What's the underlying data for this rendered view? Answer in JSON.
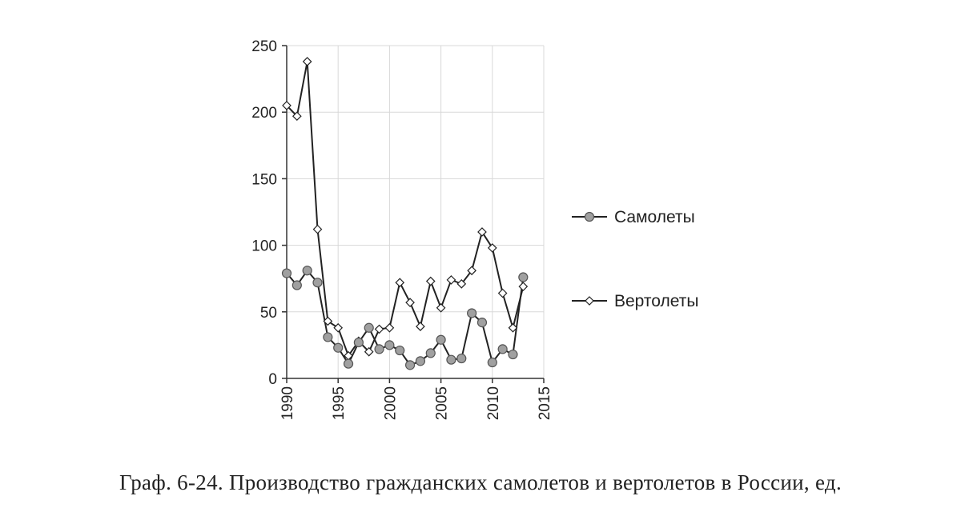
{
  "caption": "Граф. 6-24. Производство гражданских самолетов и вертолетов в России, ед.",
  "chart_data": {
    "type": "line",
    "title": "",
    "xlabel": "",
    "ylabel": "",
    "xlim": [
      1990,
      2015
    ],
    "ylim": [
      0,
      250
    ],
    "x_ticks": [
      1990,
      1995,
      2000,
      2005,
      2010,
      2015
    ],
    "y_ticks": [
      0,
      50,
      100,
      150,
      200,
      250
    ],
    "grid": true,
    "legend_position": "right",
    "x": [
      1990,
      1991,
      1992,
      1993,
      1994,
      1995,
      1996,
      1997,
      1998,
      1999,
      2000,
      2001,
      2002,
      2003,
      2004,
      2005,
      2006,
      2007,
      2008,
      2009,
      2010,
      2011,
      2012,
      2013
    ],
    "series": [
      {
        "name": "Самолеты",
        "marker": "circle",
        "color": "#a0a0a0",
        "values": [
          79,
          70,
          81,
          72,
          31,
          23,
          11,
          27,
          38,
          22,
          25,
          21,
          10,
          13,
          19,
          29,
          14,
          15,
          49,
          42,
          12,
          22,
          18,
          76
        ]
      },
      {
        "name": "Вертолеты",
        "marker": "diamond",
        "color": "#ffffff",
        "values": [
          205,
          197,
          238,
          112,
          43,
          38,
          17,
          28,
          20,
          37,
          38,
          72,
          57,
          39,
          73,
          53,
          74,
          71,
          81,
          110,
          98,
          64,
          38,
          69
        ]
      }
    ]
  }
}
